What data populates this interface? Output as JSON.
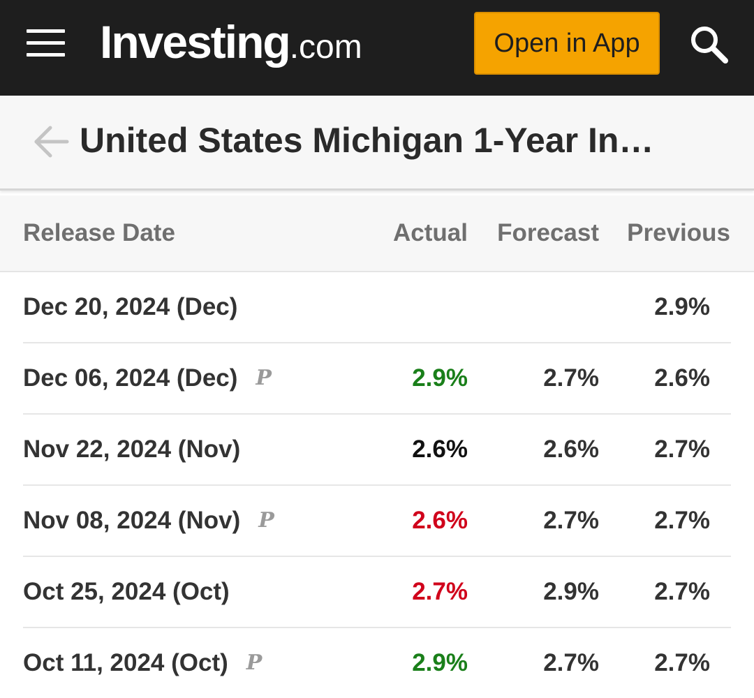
{
  "header": {
    "logo_main": "Investing",
    "logo_suffix": ".com",
    "open_app_label": "Open in App",
    "background_color": "#1e1e1e",
    "button_color": "#f5a300",
    "menu_icon": "hamburger-menu-icon",
    "search_icon": "search-icon"
  },
  "page": {
    "title": "United States Michigan 1-Year In…",
    "back_icon": "arrow-left-icon"
  },
  "table": {
    "columns": [
      "Release Date",
      "Actual",
      "Forecast",
      "Previous"
    ],
    "rows": [
      {
        "date": "Dec 20, 2024 (Dec)",
        "prelim": "",
        "actual": "",
        "actual_status": "none",
        "forecast": "",
        "previous": "2.9%"
      },
      {
        "date": "Dec 06, 2024 (Dec)",
        "prelim": "P",
        "actual": "2.9%",
        "actual_status": "better",
        "forecast": "2.7%",
        "previous": "2.6%"
      },
      {
        "date": "Nov 22, 2024 (Nov)",
        "prelim": "",
        "actual": "2.6%",
        "actual_status": "neutral",
        "forecast": "2.6%",
        "previous": "2.7%"
      },
      {
        "date": "Nov 08, 2024 (Nov)",
        "prelim": "P",
        "actual": "2.6%",
        "actual_status": "worse",
        "forecast": "2.7%",
        "previous": "2.7%"
      },
      {
        "date": "Oct 25, 2024 (Oct)",
        "prelim": "",
        "actual": "2.7%",
        "actual_status": "worse",
        "forecast": "2.9%",
        "previous": "2.7%"
      },
      {
        "date": "Oct 11, 2024 (Oct)",
        "prelim": "P",
        "actual": "2.9%",
        "actual_status": "better",
        "forecast": "2.7%",
        "previous": "2.7%"
      }
    ]
  },
  "colors": {
    "better": "#1a7f1a",
    "worse": "#d0021b",
    "neutral": "#111111",
    "none": "#333333"
  }
}
